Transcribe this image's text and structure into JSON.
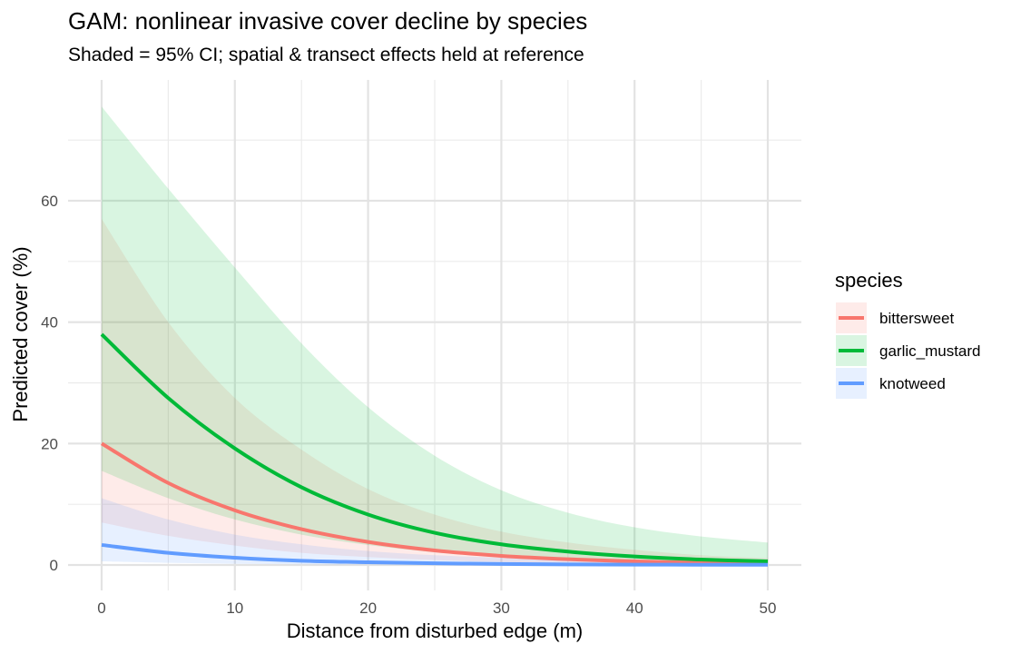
{
  "title": "GAM: nonlinear invasive cover decline by species",
  "subtitle": "Shaded = 95% CI; spatial & transect effects held at reference",
  "chart_data": {
    "type": "line",
    "xlabel": "Distance from disturbed edge (m)",
    "ylabel": "Predicted cover (%)",
    "xlim": [
      0,
      50
    ],
    "ylim": [
      0,
      75
    ],
    "x_ticks": [
      "0",
      "10",
      "20",
      "30",
      "40",
      "50"
    ],
    "y_ticks": [
      "0",
      "20",
      "40",
      "60"
    ],
    "grid": true,
    "legend": {
      "title": "species",
      "position": "right"
    },
    "x": [
      0,
      5,
      10,
      15,
      20,
      25,
      30,
      35,
      40,
      45,
      50
    ],
    "series": [
      {
        "name": "bittersweet",
        "color": "#F8766D",
        "values": [
          20.0,
          13.5,
          9.0,
          5.9,
          3.8,
          2.4,
          1.5,
          0.95,
          0.6,
          0.38,
          0.25
        ],
        "lower": [
          7.0,
          4.8,
          3.2,
          2.0,
          1.3,
          0.8,
          0.5,
          0.3,
          0.18,
          0.1,
          0.05
        ],
        "upper": [
          57.0,
          40.0,
          27.5,
          19.0,
          12.5,
          8.3,
          5.5,
          3.7,
          2.5,
          1.6,
          1.1
        ]
      },
      {
        "name": "garlic_mustard",
        "color": "#00BA38",
        "values": [
          38.0,
          27.5,
          19.2,
          12.8,
          8.3,
          5.3,
          3.4,
          2.2,
          1.4,
          0.9,
          0.6
        ],
        "lower": [
          15.5,
          11.0,
          7.5,
          5.0,
          3.3,
          2.1,
          1.3,
          0.8,
          0.5,
          0.3,
          0.2
        ],
        "upper": [
          75.5,
          62.0,
          49.0,
          36.5,
          26.0,
          18.0,
          12.3,
          8.6,
          6.2,
          4.7,
          3.7
        ]
      },
      {
        "name": "knotweed",
        "color": "#619CFF",
        "values": [
          3.3,
          2.0,
          1.2,
          0.7,
          0.45,
          0.28,
          0.17,
          0.1,
          0.06,
          0.04,
          0.03
        ],
        "lower": [
          0.6,
          0.35,
          0.2,
          0.12,
          0.07,
          0.04,
          0.02,
          0.01,
          0.01,
          0.0,
          0.0
        ],
        "upper": [
          11.0,
          7.5,
          5.0,
          3.4,
          2.3,
          1.6,
          1.2,
          0.9,
          0.7,
          0.55,
          0.45
        ]
      }
    ]
  }
}
